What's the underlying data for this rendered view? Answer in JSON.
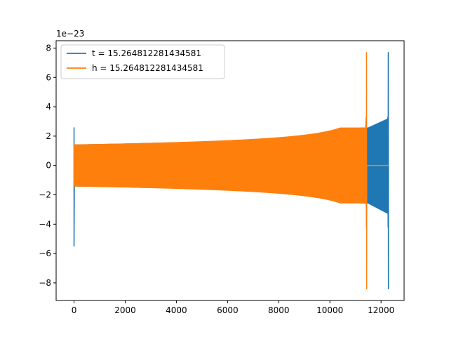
{
  "chart_data": {
    "type": "line",
    "title": "",
    "xlabel": "",
    "ylabel": "",
    "y_scale_label": "1e−23",
    "xlim": [
      -700,
      12900
    ],
    "ylim": [
      -9.2,
      8.5
    ],
    "x_ticks": [
      0,
      2000,
      4000,
      6000,
      8000,
      10000,
      12000
    ],
    "x_tick_labels": [
      "0",
      "2000",
      "4000",
      "6000",
      "8000",
      "10000",
      "12000"
    ],
    "y_ticks": [
      -8,
      -6,
      -4,
      -2,
      0,
      2,
      4,
      6,
      8
    ],
    "y_tick_labels": [
      "−8",
      "−6",
      "−4",
      "−2",
      "0",
      "2",
      "4",
      "6",
      "8"
    ],
    "grid": false,
    "legend": "top-left",
    "series": [
      {
        "name": "t = 15.264812281434581",
        "color": "#1f77b4",
        "samples": 12290,
        "initial_spike": {
          "x": 0,
          "ymax": 2.6,
          "ymin": -5.5
        },
        "waveform_start": 0,
        "envelope_start": 1.4,
        "merger_x": 12290,
        "merger_peak": 7.7,
        "merger_trough": -8.4
      },
      {
        "name": "h = 15.264812281434581",
        "color": "#ff7f0e",
        "samples": 12290,
        "initial_spike": {
          "x": 0,
          "ymax": 1.4,
          "ymin": -1.4
        },
        "waveform_start": 0,
        "envelope_start": 1.4,
        "merger_x": 11440,
        "merger_peak": 7.7,
        "merger_trough": -8.4,
        "flat_after": 11440,
        "flat_until": 12290,
        "flat_value": 0
      }
    ]
  }
}
